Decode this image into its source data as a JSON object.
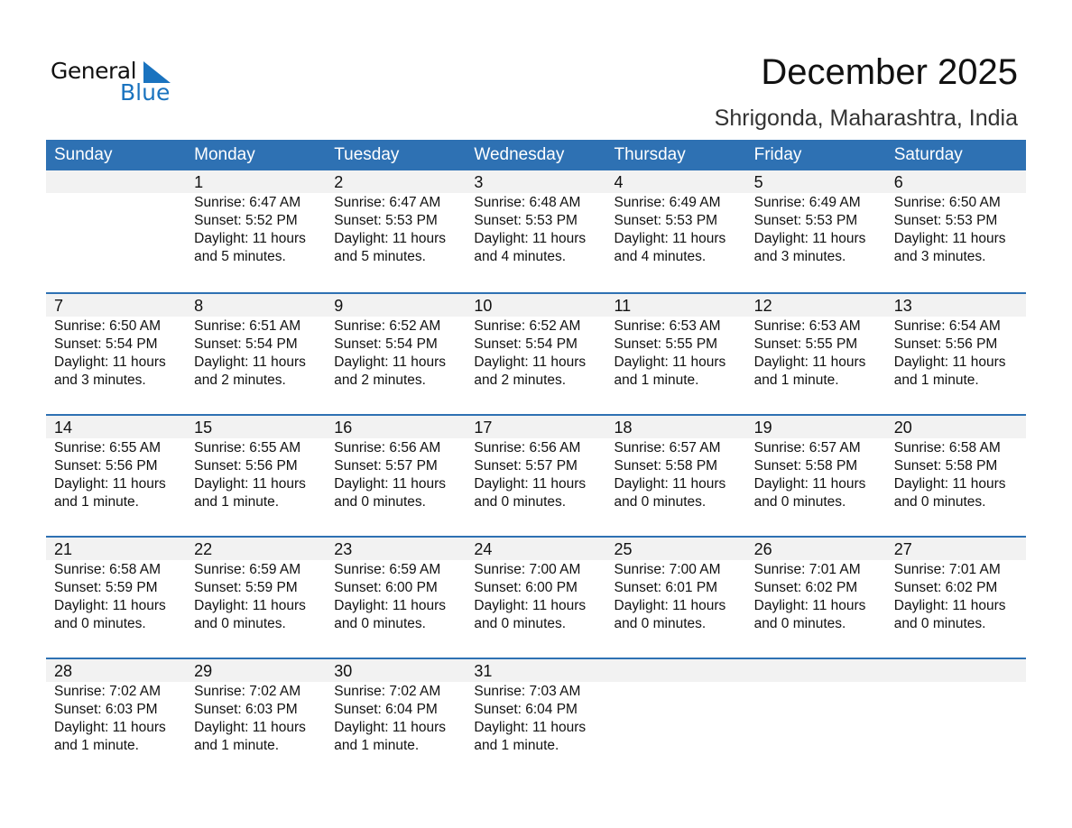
{
  "logo": {
    "line1": "General",
    "line2": "Blue",
    "accent": "#1a73bf"
  },
  "title": "December 2025",
  "location": "Shrigonda, Maharashtra, India",
  "header_color": "#2e71b3",
  "weekdays": [
    "Sunday",
    "Monday",
    "Tuesday",
    "Wednesday",
    "Thursday",
    "Friday",
    "Saturday"
  ],
  "weeks": [
    [
      null,
      {
        "day": "1",
        "sunrise": "Sunrise: 6:47 AM",
        "sunset": "Sunset: 5:52 PM",
        "daylight": "Daylight: 11 hours",
        "minutes": "and 5 minutes."
      },
      {
        "day": "2",
        "sunrise": "Sunrise: 6:47 AM",
        "sunset": "Sunset: 5:53 PM",
        "daylight": "Daylight: 11 hours",
        "minutes": "and 5 minutes."
      },
      {
        "day": "3",
        "sunrise": "Sunrise: 6:48 AM",
        "sunset": "Sunset: 5:53 PM",
        "daylight": "Daylight: 11 hours",
        "minutes": "and 4 minutes."
      },
      {
        "day": "4",
        "sunrise": "Sunrise: 6:49 AM",
        "sunset": "Sunset: 5:53 PM",
        "daylight": "Daylight: 11 hours",
        "minutes": "and 4 minutes."
      },
      {
        "day": "5",
        "sunrise": "Sunrise: 6:49 AM",
        "sunset": "Sunset: 5:53 PM",
        "daylight": "Daylight: 11 hours",
        "minutes": "and 3 minutes."
      },
      {
        "day": "6",
        "sunrise": "Sunrise: 6:50 AM",
        "sunset": "Sunset: 5:53 PM",
        "daylight": "Daylight: 11 hours",
        "minutes": "and 3 minutes."
      }
    ],
    [
      {
        "day": "7",
        "sunrise": "Sunrise: 6:50 AM",
        "sunset": "Sunset: 5:54 PM",
        "daylight": "Daylight: 11 hours",
        "minutes": "and 3 minutes."
      },
      {
        "day": "8",
        "sunrise": "Sunrise: 6:51 AM",
        "sunset": "Sunset: 5:54 PM",
        "daylight": "Daylight: 11 hours",
        "minutes": "and 2 minutes."
      },
      {
        "day": "9",
        "sunrise": "Sunrise: 6:52 AM",
        "sunset": "Sunset: 5:54 PM",
        "daylight": "Daylight: 11 hours",
        "minutes": "and 2 minutes."
      },
      {
        "day": "10",
        "sunrise": "Sunrise: 6:52 AM",
        "sunset": "Sunset: 5:54 PM",
        "daylight": "Daylight: 11 hours",
        "minutes": "and 2 minutes."
      },
      {
        "day": "11",
        "sunrise": "Sunrise: 6:53 AM",
        "sunset": "Sunset: 5:55 PM",
        "daylight": "Daylight: 11 hours",
        "minutes": "and 1 minute."
      },
      {
        "day": "12",
        "sunrise": "Sunrise: 6:53 AM",
        "sunset": "Sunset: 5:55 PM",
        "daylight": "Daylight: 11 hours",
        "minutes": "and 1 minute."
      },
      {
        "day": "13",
        "sunrise": "Sunrise: 6:54 AM",
        "sunset": "Sunset: 5:56 PM",
        "daylight": "Daylight: 11 hours",
        "minutes": "and 1 minute."
      }
    ],
    [
      {
        "day": "14",
        "sunrise": "Sunrise: 6:55 AM",
        "sunset": "Sunset: 5:56 PM",
        "daylight": "Daylight: 11 hours",
        "minutes": "and 1 minute."
      },
      {
        "day": "15",
        "sunrise": "Sunrise: 6:55 AM",
        "sunset": "Sunset: 5:56 PM",
        "daylight": "Daylight: 11 hours",
        "minutes": "and 1 minute."
      },
      {
        "day": "16",
        "sunrise": "Sunrise: 6:56 AM",
        "sunset": "Sunset: 5:57 PM",
        "daylight": "Daylight: 11 hours",
        "minutes": "and 0 minutes."
      },
      {
        "day": "17",
        "sunrise": "Sunrise: 6:56 AM",
        "sunset": "Sunset: 5:57 PM",
        "daylight": "Daylight: 11 hours",
        "minutes": "and 0 minutes."
      },
      {
        "day": "18",
        "sunrise": "Sunrise: 6:57 AM",
        "sunset": "Sunset: 5:58 PM",
        "daylight": "Daylight: 11 hours",
        "minutes": "and 0 minutes."
      },
      {
        "day": "19",
        "sunrise": "Sunrise: 6:57 AM",
        "sunset": "Sunset: 5:58 PM",
        "daylight": "Daylight: 11 hours",
        "minutes": "and 0 minutes."
      },
      {
        "day": "20",
        "sunrise": "Sunrise: 6:58 AM",
        "sunset": "Sunset: 5:58 PM",
        "daylight": "Daylight: 11 hours",
        "minutes": "and 0 minutes."
      }
    ],
    [
      {
        "day": "21",
        "sunrise": "Sunrise: 6:58 AM",
        "sunset": "Sunset: 5:59 PM",
        "daylight": "Daylight: 11 hours",
        "minutes": "and 0 minutes."
      },
      {
        "day": "22",
        "sunrise": "Sunrise: 6:59 AM",
        "sunset": "Sunset: 5:59 PM",
        "daylight": "Daylight: 11 hours",
        "minutes": "and 0 minutes."
      },
      {
        "day": "23",
        "sunrise": "Sunrise: 6:59 AM",
        "sunset": "Sunset: 6:00 PM",
        "daylight": "Daylight: 11 hours",
        "minutes": "and 0 minutes."
      },
      {
        "day": "24",
        "sunrise": "Sunrise: 7:00 AM",
        "sunset": "Sunset: 6:00 PM",
        "daylight": "Daylight: 11 hours",
        "minutes": "and 0 minutes."
      },
      {
        "day": "25",
        "sunrise": "Sunrise: 7:00 AM",
        "sunset": "Sunset: 6:01 PM",
        "daylight": "Daylight: 11 hours",
        "minutes": "and 0 minutes."
      },
      {
        "day": "26",
        "sunrise": "Sunrise: 7:01 AM",
        "sunset": "Sunset: 6:02 PM",
        "daylight": "Daylight: 11 hours",
        "minutes": "and 0 minutes."
      },
      {
        "day": "27",
        "sunrise": "Sunrise: 7:01 AM",
        "sunset": "Sunset: 6:02 PM",
        "daylight": "Daylight: 11 hours",
        "minutes": "and 0 minutes."
      }
    ],
    [
      {
        "day": "28",
        "sunrise": "Sunrise: 7:02 AM",
        "sunset": "Sunset: 6:03 PM",
        "daylight": "Daylight: 11 hours",
        "minutes": "and 1 minute."
      },
      {
        "day": "29",
        "sunrise": "Sunrise: 7:02 AM",
        "sunset": "Sunset: 6:03 PM",
        "daylight": "Daylight: 11 hours",
        "minutes": "and 1 minute."
      },
      {
        "day": "30",
        "sunrise": "Sunrise: 7:02 AM",
        "sunset": "Sunset: 6:04 PM",
        "daylight": "Daylight: 11 hours",
        "minutes": "and 1 minute."
      },
      {
        "day": "31",
        "sunrise": "Sunrise: 7:03 AM",
        "sunset": "Sunset: 6:04 PM",
        "daylight": "Daylight: 11 hours",
        "minutes": "and 1 minute."
      },
      null,
      null,
      null
    ]
  ]
}
